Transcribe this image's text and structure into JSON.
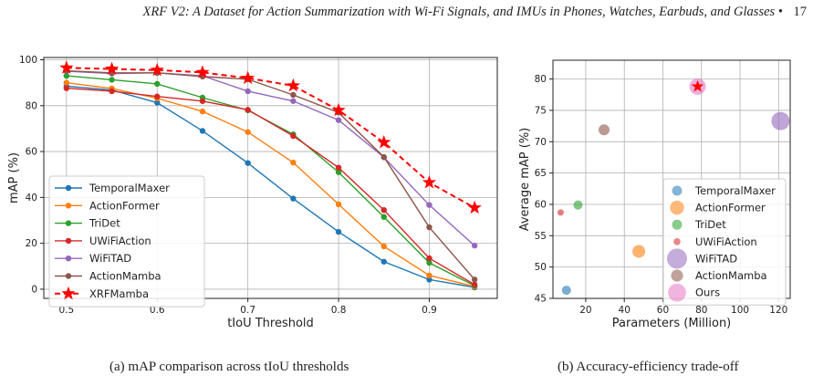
{
  "header": {
    "running_title": "XRF V2: A Dataset for Action Summarization with Wi-Fi Signals, and IMUs in Phones, Watches, Earbuds, and Glasses",
    "separator": "•",
    "page_number": "17"
  },
  "captions": {
    "left": "(a) mAP comparison across tIoU thresholds",
    "right": "(b) Accuracy-efficiency trade-off"
  },
  "chart_data": [
    {
      "type": "line",
      "xlabel": "tIoU Threshold",
      "ylabel": "mAP (%)",
      "xlim": [
        0.475,
        0.975
      ],
      "ylim": [
        -4,
        101
      ],
      "xticks": [
        0.5,
        0.6,
        0.7,
        0.8,
        0.9
      ],
      "yticks": [
        0,
        20,
        40,
        60,
        80,
        100
      ],
      "grid": true,
      "legend_position": "lower-left",
      "x": [
        0.5,
        0.55,
        0.6,
        0.65,
        0.7,
        0.75,
        0.8,
        0.85,
        0.9,
        0.95
      ],
      "series": [
        {
          "name": "TemporalMaxer",
          "color": "#1f77b4",
          "marker": "circle",
          "style": "solid",
          "values": [
            88.5,
            86.8,
            81.3,
            69.0,
            55.0,
            39.5,
            25.0,
            12.0,
            4.2,
            0.8
          ]
        },
        {
          "name": "ActionFormer",
          "color": "#ff7f0e",
          "marker": "circle",
          "style": "solid",
          "values": [
            90.0,
            87.5,
            83.2,
            77.5,
            68.5,
            55.2,
            37.0,
            18.7,
            6.0,
            1.2
          ]
        },
        {
          "name": "TriDet",
          "color": "#2ca02c",
          "marker": "circle",
          "style": "solid",
          "values": [
            93.0,
            91.3,
            89.5,
            83.5,
            78.0,
            67.5,
            51.0,
            31.5,
            11.5,
            1.5
          ]
        },
        {
          "name": "UWiFiAction",
          "color": "#d62728",
          "marker": "circle",
          "style": "solid",
          "values": [
            87.6,
            86.3,
            84.0,
            82.0,
            78.2,
            66.8,
            53.0,
            34.5,
            13.5,
            2.0
          ]
        },
        {
          "name": "WiFiTAD",
          "color": "#9467bd",
          "marker": "circle",
          "style": "solid",
          "values": [
            95.0,
            94.0,
            94.3,
            93.0,
            86.3,
            82.0,
            73.7,
            57.5,
            36.7,
            19.0
          ]
        },
        {
          "name": "ActionMamba",
          "color": "#8c564b",
          "marker": "circle",
          "style": "solid",
          "values": [
            95.2,
            94.3,
            94.3,
            92.7,
            91.5,
            84.7,
            77.0,
            57.6,
            27.0,
            4.2
          ]
        },
        {
          "name": "XRFMamba",
          "color": "#ff0000",
          "marker": "star",
          "style": "dashed",
          "values": [
            96.5,
            96.0,
            95.5,
            94.5,
            92.0,
            88.7,
            78.0,
            64.0,
            46.5,
            35.5
          ]
        }
      ]
    },
    {
      "type": "scatter",
      "xlabel": "Parameters (Million)",
      "ylabel": "Average mAP (%)",
      "xlim": [
        3,
        126
      ],
      "ylim": [
        45,
        83
      ],
      "xticks": [
        20,
        40,
        60,
        80,
        100,
        120
      ],
      "yticks": [
        45,
        50,
        55,
        60,
        65,
        70,
        75,
        80
      ],
      "grid": true,
      "legend_position": "lower-right",
      "points": [
        {
          "name": "TemporalMaxer",
          "color": "#1f77b4",
          "x": 10,
          "y": 46.3,
          "size": 10
        },
        {
          "name": "ActionFormer",
          "color": "#ff7f0e",
          "x": 47.5,
          "y": 52.5,
          "size": 14
        },
        {
          "name": "TriDet",
          "color": "#2ca02c",
          "x": 16,
          "y": 59.9,
          "size": 10
        },
        {
          "name": "UWiFiAction",
          "color": "#d62728",
          "x": 7,
          "y": 58.7,
          "size": 7
        },
        {
          "name": "WiFiTAD",
          "color": "#9467bd",
          "x": 121,
          "y": 73.3,
          "size": 20
        },
        {
          "name": "ActionMamba",
          "color": "#8c564b",
          "x": 29.5,
          "y": 71.9,
          "size": 12
        },
        {
          "name": "Ours",
          "color": "#e377c2",
          "x": 78,
          "y": 78.8,
          "size": 18
        }
      ]
    }
  ]
}
